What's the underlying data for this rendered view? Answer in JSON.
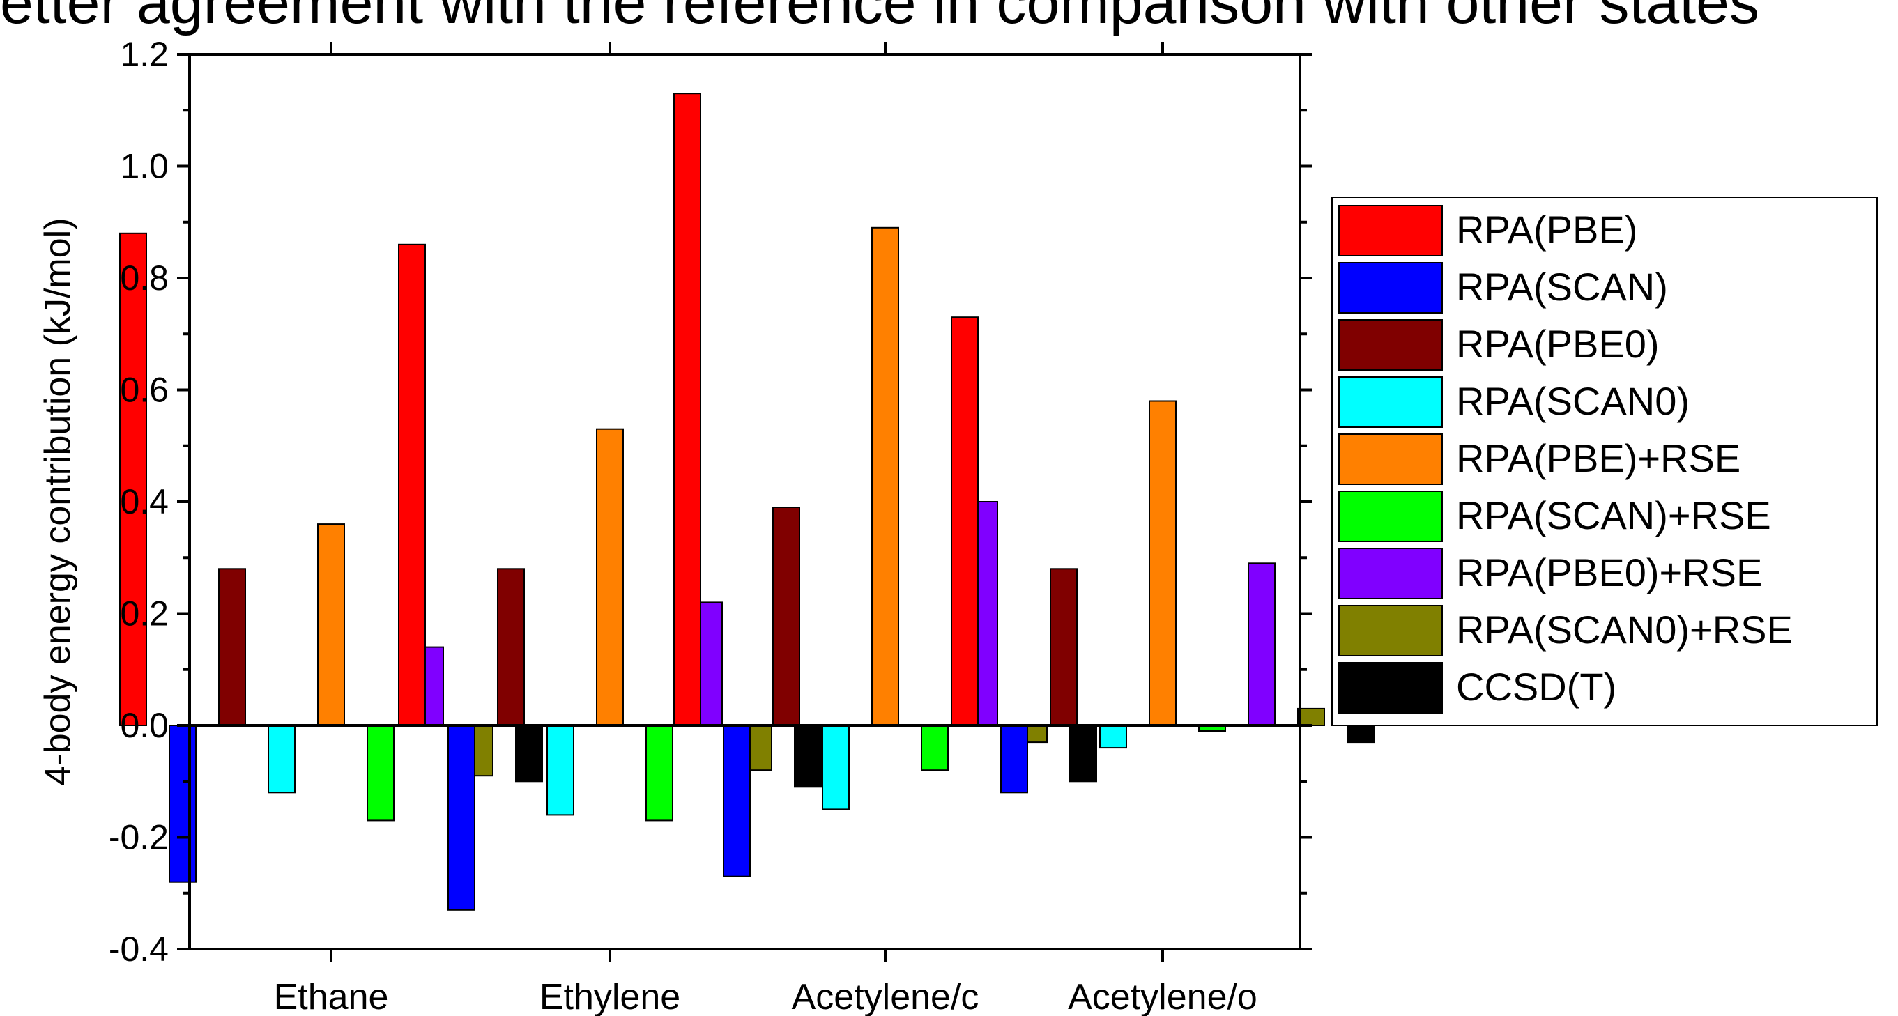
{
  "caption": "etter agreement with the reference in comparison with other states",
  "chart_data": {
    "type": "bar",
    "title": "",
    "xlabel": "",
    "ylabel": "4-body energy contribution (kJ/mol)",
    "ylim": [
      -0.4,
      1.2
    ],
    "yticks": [
      "1.2",
      "1.0",
      "0.8",
      "0.6",
      "0.4",
      "0.2",
      "0.0",
      "-0.2",
      "-0.4"
    ],
    "grid": false,
    "legend_position": "right",
    "categories": [
      "Ethane",
      "Ethylene",
      "Acetylene/c",
      "Acetylene/o"
    ],
    "series": [
      {
        "name": "RPA(PBE)",
        "color": "#ff0000",
        "values": [
          0.88,
          0.86,
          1.13,
          0.73
        ]
      },
      {
        "name": "RPA(SCAN)",
        "color": "#0000ff",
        "values": [
          -0.28,
          -0.33,
          -0.27,
          -0.12
        ]
      },
      {
        "name": "RPA(PBE0)",
        "color": "#800000",
        "values": [
          0.28,
          0.28,
          0.39,
          0.28
        ]
      },
      {
        "name": "RPA(SCAN0)",
        "color": "#00ffff",
        "values": [
          -0.12,
          -0.16,
          -0.15,
          -0.04
        ]
      },
      {
        "name": "RPA(PBE)+RSE",
        "color": "#ff8000",
        "values": [
          0.36,
          0.53,
          0.89,
          0.58
        ]
      },
      {
        "name": "RPA(SCAN)+RSE",
        "color": "#00ff00",
        "values": [
          -0.17,
          -0.17,
          -0.08,
          -0.01
        ]
      },
      {
        "name": "RPA(PBE0)+RSE",
        "color": "#8000ff",
        "values": [
          0.14,
          0.22,
          0.4,
          0.29
        ]
      },
      {
        "name": "RPA(SCAN0)+RSE",
        "color": "#808000",
        "values": [
          -0.09,
          -0.08,
          -0.03,
          0.03
        ]
      },
      {
        "name": "CCSD(T)",
        "color": "#000000",
        "values": [
          -0.1,
          -0.11,
          -0.1,
          -0.03
        ]
      }
    ]
  }
}
